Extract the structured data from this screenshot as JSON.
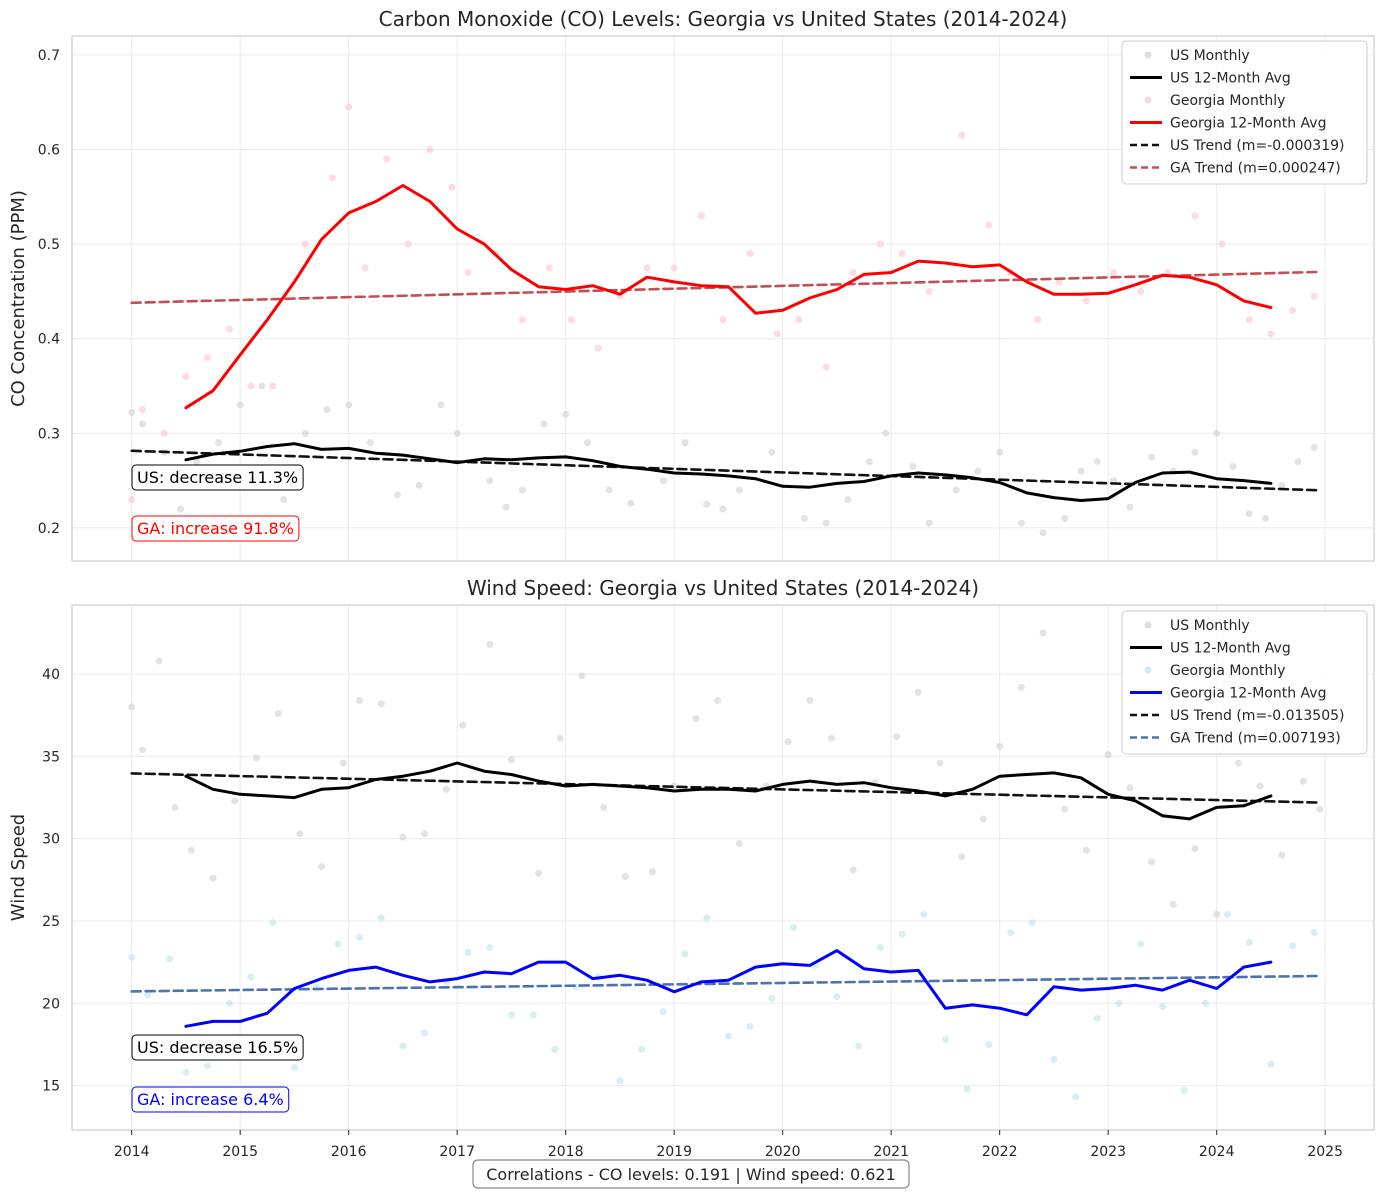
{
  "footer": "Correlations - CO levels: 0.191 | Wind speed: 0.621",
  "chart_data": [
    {
      "type": "line",
      "title": "Carbon Monoxide (CO) Levels: Georgia vs United States (2014-2024)",
      "ylabel": "CO Concentration (PPM)",
      "xlabel": "",
      "xlim": [
        2013.45,
        2025.45
      ],
      "ylim": [
        0.165,
        0.72
      ],
      "xticks": [
        2014,
        2015,
        2016,
        2017,
        2018,
        2019,
        2020,
        2021,
        2022,
        2023,
        2024,
        2025
      ],
      "yticks": [
        0.2,
        0.3,
        0.4,
        0.5,
        0.6,
        0.7
      ],
      "grid": true,
      "legend_position": "top-right",
      "legend": [
        "US Monthly",
        "US 12-Month Avg",
        "Georgia Monthly",
        "Georgia 12-Month Avg",
        "US Trend (m=-0.000319)",
        "GA Trend (m=0.000247)"
      ],
      "colors": {
        "us": "#000000",
        "ga": "#ff0000",
        "us_scatter": "#c8c8c8",
        "ga_scatter": "#ffb6c1",
        "us_trend": "#111111",
        "ga_trend": "#c44e52"
      },
      "series": [
        {
          "name": "US 12-Month Avg",
          "kind": "line",
          "x": [
            2014.5,
            2014.75,
            2015.0,
            2015.25,
            2015.5,
            2015.75,
            2016.0,
            2016.25,
            2016.5,
            2016.75,
            2017.0,
            2017.25,
            2017.5,
            2017.75,
            2018.0,
            2018.25,
            2018.5,
            2018.75,
            2019.0,
            2019.25,
            2019.5,
            2019.75,
            2020.0,
            2020.25,
            2020.5,
            2020.75,
            2021.0,
            2021.25,
            2021.5,
            2021.75,
            2022.0,
            2022.25,
            2022.5,
            2022.75,
            2023.0,
            2023.25,
            2023.5,
            2023.75,
            2024.0,
            2024.25,
            2024.5
          ],
          "y": [
            0.272,
            0.278,
            0.281,
            0.286,
            0.289,
            0.283,
            0.284,
            0.279,
            0.277,
            0.273,
            0.269,
            0.273,
            0.272,
            0.274,
            0.275,
            0.271,
            0.265,
            0.262,
            0.258,
            0.257,
            0.255,
            0.252,
            0.244,
            0.243,
            0.247,
            0.249,
            0.255,
            0.258,
            0.256,
            0.253,
            0.248,
            0.237,
            0.232,
            0.229,
            0.231,
            0.248,
            0.258,
            0.259,
            0.252,
            0.25,
            0.247
          ]
        },
        {
          "name": "Georgia 12-Month Avg",
          "kind": "line",
          "x": [
            2014.5,
            2014.75,
            2015.0,
            2015.25,
            2015.5,
            2015.75,
            2016.0,
            2016.25,
            2016.5,
            2016.75,
            2017.0,
            2017.25,
            2017.5,
            2017.75,
            2018.0,
            2018.25,
            2018.5,
            2018.75,
            2019.0,
            2019.25,
            2019.5,
            2019.75,
            2020.0,
            2020.25,
            2020.5,
            2020.75,
            2021.0,
            2021.25,
            2021.5,
            2021.75,
            2022.0,
            2022.25,
            2022.5,
            2022.75,
            2023.0,
            2023.25,
            2023.5,
            2023.75,
            2024.0,
            2024.25,
            2024.5
          ],
          "y": [
            0.327,
            0.345,
            0.383,
            0.42,
            0.46,
            0.505,
            0.533,
            0.545,
            0.562,
            0.545,
            0.516,
            0.5,
            0.473,
            0.455,
            0.452,
            0.456,
            0.447,
            0.465,
            0.46,
            0.456,
            0.455,
            0.427,
            0.43,
            0.443,
            0.452,
            0.468,
            0.47,
            0.482,
            0.48,
            0.476,
            0.478,
            0.46,
            0.447,
            0.447,
            0.448,
            0.457,
            0.467,
            0.465,
            0.457,
            0.44,
            0.433
          ]
        },
        {
          "name": "US Trend (m=-0.000319)",
          "kind": "trend",
          "x": [
            2014.0,
            2024.92
          ],
          "y": [
            0.2815,
            0.2398
          ]
        },
        {
          "name": "GA Trend (m=0.000247)",
          "kind": "trend",
          "x": [
            2014.0,
            2024.92
          ],
          "y": [
            0.438,
            0.4705
          ]
        },
        {
          "name": "US Monthly",
          "kind": "scatter",
          "x": [
            2014.0,
            2014.1,
            2014.3,
            2014.45,
            2014.6,
            2014.8,
            2015.0,
            2015.2,
            2015.4,
            2015.6,
            2015.8,
            2016.0,
            2016.2,
            2016.45,
            2016.65,
            2016.85,
            2017.0,
            2017.3,
            2017.45,
            2017.6,
            2017.8,
            2018.0,
            2018.2,
            2018.4,
            2018.6,
            2018.9,
            2019.1,
            2019.3,
            2019.45,
            2019.6,
            2019.9,
            2020.2,
            2020.4,
            2020.6,
            2020.8,
            2020.95,
            2021.2,
            2021.35,
            2021.6,
            2021.8,
            2022.0,
            2022.2,
            2022.4,
            2022.6,
            2022.75,
            2022.9,
            2023.05,
            2023.2,
            2023.4,
            2023.6,
            2023.8,
            2024.0,
            2024.15,
            2024.3,
            2024.45,
            2024.6,
            2024.75,
            2024.9
          ],
          "y": [
            0.322,
            0.31,
            0.28,
            0.22,
            0.27,
            0.29,
            0.33,
            0.35,
            0.23,
            0.3,
            0.325,
            0.33,
            0.29,
            0.235,
            0.245,
            0.33,
            0.3,
            0.25,
            0.222,
            0.24,
            0.31,
            0.32,
            0.29,
            0.24,
            0.226,
            0.25,
            0.29,
            0.225,
            0.22,
            0.24,
            0.28,
            0.21,
            0.205,
            0.23,
            0.27,
            0.3,
            0.265,
            0.205,
            0.24,
            0.26,
            0.28,
            0.205,
            0.195,
            0.21,
            0.26,
            0.27,
            0.25,
            0.222,
            0.275,
            0.26,
            0.28,
            0.3,
            0.265,
            0.215,
            0.21,
            0.245,
            0.27,
            0.285
          ]
        },
        {
          "name": "Georgia Monthly",
          "kind": "scatter",
          "x": [
            2014.0,
            2014.1,
            2014.3,
            2014.5,
            2014.7,
            2014.9,
            2015.1,
            2015.3,
            2015.6,
            2015.85,
            2016.0,
            2016.15,
            2016.35,
            2016.55,
            2016.75,
            2016.95,
            2017.1,
            2017.35,
            2017.6,
            2017.85,
            2018.05,
            2018.3,
            2018.5,
            2018.75,
            2019.0,
            2019.25,
            2019.45,
            2019.7,
            2019.95,
            2020.15,
            2020.4,
            2020.65,
            2020.9,
            2021.1,
            2021.35,
            2021.65,
            2021.9,
            2022.1,
            2022.35,
            2022.55,
            2022.8,
            2023.05,
            2023.3,
            2023.55,
            2023.8,
            2024.05,
            2024.3,
            2024.5,
            2024.7,
            2024.9
          ],
          "y": [
            0.23,
            0.325,
            0.3,
            0.36,
            0.38,
            0.41,
            0.35,
            0.35,
            0.5,
            0.57,
            0.645,
            0.475,
            0.59,
            0.5,
            0.6,
            0.56,
            0.47,
            0.49,
            0.42,
            0.475,
            0.42,
            0.39,
            0.445,
            0.475,
            0.475,
            0.53,
            0.42,
            0.49,
            0.405,
            0.42,
            0.37,
            0.47,
            0.5,
            0.49,
            0.45,
            0.615,
            0.52,
            0.47,
            0.42,
            0.46,
            0.44,
            0.47,
            0.45,
            0.47,
            0.53,
            0.5,
            0.42,
            0.405,
            0.43,
            0.445
          ]
        }
      ],
      "annotations": [
        {
          "text": "US: decrease 11.3%",
          "color": "#000000"
        },
        {
          "text": "GA: increase 91.8%",
          "color": "#ff0000"
        }
      ]
    },
    {
      "type": "line",
      "title": "Wind Speed: Georgia vs United States (2014-2024)",
      "ylabel": "Wind Speed",
      "xlabel": "",
      "xlim": [
        2013.45,
        2025.45
      ],
      "ylim": [
        12.3,
        44.2
      ],
      "xticks": [
        2014,
        2015,
        2016,
        2017,
        2018,
        2019,
        2020,
        2021,
        2022,
        2023,
        2024,
        2025
      ],
      "yticks": [
        15,
        20,
        25,
        30,
        35,
        40
      ],
      "grid": true,
      "legend_position": "top-right",
      "legend": [
        "US Monthly",
        "US 12-Month Avg",
        "Georgia Monthly",
        "Georgia 12-Month Avg",
        "US Trend (m=-0.013505)",
        "GA Trend (m=0.007193)"
      ],
      "colors": {
        "us": "#000000",
        "ga": "#0000ff",
        "us_scatter": "#c8c8c8",
        "ga_scatter": "#b0e0e6",
        "us_trend": "#111111",
        "ga_trend": "#4c72b0"
      },
      "series": [
        {
          "name": "US 12-Month Avg",
          "kind": "line",
          "x": [
            2014.5,
            2014.75,
            2015.0,
            2015.25,
            2015.5,
            2015.75,
            2016.0,
            2016.25,
            2016.5,
            2016.75,
            2017.0,
            2017.25,
            2017.5,
            2017.75,
            2018.0,
            2018.25,
            2018.5,
            2018.75,
            2019.0,
            2019.25,
            2019.5,
            2019.75,
            2020.0,
            2020.25,
            2020.5,
            2020.75,
            2021.0,
            2021.25,
            2021.5,
            2021.75,
            2022.0,
            2022.25,
            2022.5,
            2022.75,
            2023.0,
            2023.25,
            2023.5,
            2023.75,
            2024.0,
            2024.25,
            2024.5
          ],
          "y": [
            33.8,
            33.0,
            32.7,
            32.6,
            32.5,
            33.0,
            33.1,
            33.6,
            33.8,
            34.1,
            34.6,
            34.1,
            33.9,
            33.5,
            33.2,
            33.3,
            33.2,
            33.1,
            32.9,
            33.0,
            33.0,
            32.9,
            33.3,
            33.5,
            33.3,
            33.4,
            33.1,
            32.9,
            32.6,
            33.0,
            33.8,
            33.9,
            34.0,
            33.7,
            32.7,
            32.3,
            31.4,
            31.2,
            31.9,
            32.0,
            32.6
          ]
        },
        {
          "name": "Georgia 12-Month Avg",
          "kind": "line",
          "x": [
            2014.5,
            2014.75,
            2015.0,
            2015.25,
            2015.5,
            2015.75,
            2016.0,
            2016.25,
            2016.5,
            2016.75,
            2017.0,
            2017.25,
            2017.5,
            2017.75,
            2018.0,
            2018.25,
            2018.5,
            2018.75,
            2019.0,
            2019.25,
            2019.5,
            2019.75,
            2020.0,
            2020.25,
            2020.5,
            2020.75,
            2021.0,
            2021.25,
            2021.5,
            2021.75,
            2022.0,
            2022.25,
            2022.5,
            2022.75,
            2023.0,
            2023.25,
            2023.5,
            2023.75,
            2024.0,
            2024.25,
            2024.5
          ],
          "y": [
            18.6,
            18.9,
            18.9,
            19.4,
            20.9,
            21.5,
            22.0,
            22.2,
            21.7,
            21.3,
            21.5,
            21.9,
            21.8,
            22.5,
            22.5,
            21.5,
            21.7,
            21.4,
            20.7,
            21.3,
            21.4,
            22.2,
            22.4,
            22.3,
            23.2,
            22.1,
            21.9,
            22.0,
            19.7,
            19.9,
            19.7,
            19.3,
            21.0,
            20.8,
            20.9,
            21.1,
            20.8,
            21.4,
            20.9,
            22.2,
            22.5
          ]
        },
        {
          "name": "US Trend (m=-0.013505)",
          "kind": "trend",
          "x": [
            2014.0,
            2024.92
          ],
          "y": [
            33.97,
            32.2
          ]
        },
        {
          "name": "GA Trend (m=0.007193)",
          "kind": "trend",
          "x": [
            2014.0,
            2024.92
          ],
          "y": [
            20.72,
            21.66
          ]
        },
        {
          "name": "US Monthly",
          "kind": "scatter",
          "x": [
            2014.0,
            2014.1,
            2014.25,
            2014.4,
            2014.55,
            2014.75,
            2014.95,
            2015.15,
            2015.35,
            2015.55,
            2015.75,
            2015.95,
            2016.1,
            2016.3,
            2016.5,
            2016.7,
            2016.9,
            2017.05,
            2017.3,
            2017.5,
            2017.75,
            2017.95,
            2018.15,
            2018.35,
            2018.55,
            2018.8,
            2019.0,
            2019.2,
            2019.4,
            2019.6,
            2019.85,
            2020.05,
            2020.25,
            2020.45,
            2020.65,
            2020.85,
            2021.05,
            2021.25,
            2021.45,
            2021.65,
            2021.85,
            2022.0,
            2022.2,
            2022.4,
            2022.6,
            2022.8,
            2023.0,
            2023.2,
            2023.4,
            2023.6,
            2023.8,
            2024.0,
            2024.2,
            2024.4,
            2024.6,
            2024.8,
            2024.95
          ],
          "y": [
            38.0,
            35.4,
            40.8,
            31.9,
            29.3,
            27.6,
            32.3,
            34.9,
            37.6,
            30.3,
            28.3,
            34.6,
            38.4,
            38.2,
            30.1,
            30.3,
            33.0,
            36.9,
            41.8,
            34.8,
            27.9,
            36.1,
            39.9,
            31.9,
            27.7,
            28.0,
            33.2,
            37.3,
            38.4,
            29.7,
            33.2,
            35.9,
            38.4,
            36.1,
            28.1,
            33.4,
            36.2,
            38.9,
            34.6,
            28.9,
            31.2,
            35.6,
            39.2,
            42.5,
            31.8,
            29.3,
            35.1,
            33.1,
            28.6,
            26.0,
            29.4,
            25.4,
            34.6,
            33.2,
            29.0,
            33.5,
            31.8
          ]
        },
        {
          "name": "Georgia Monthly",
          "kind": "scatter",
          "x": [
            2014.0,
            2014.15,
            2014.35,
            2014.5,
            2014.7,
            2014.9,
            2015.1,
            2015.3,
            2015.5,
            2015.7,
            2015.9,
            2016.1,
            2016.3,
            2016.5,
            2016.7,
            2016.9,
            2017.1,
            2017.3,
            2017.5,
            2017.7,
            2017.9,
            2018.1,
            2018.3,
            2018.5,
            2018.7,
            2018.9,
            2019.1,
            2019.3,
            2019.5,
            2019.7,
            2019.9,
            2020.1,
            2020.3,
            2020.5,
            2020.7,
            2020.9,
            2021.1,
            2021.3,
            2021.5,
            2021.7,
            2021.9,
            2022.1,
            2022.3,
            2022.5,
            2022.7,
            2022.9,
            2023.1,
            2023.3,
            2023.5,
            2023.7,
            2023.9,
            2024.1,
            2024.3,
            2024.5,
            2024.7,
            2024.9
          ],
          "y": [
            22.8,
            20.5,
            22.7,
            15.8,
            16.2,
            20.0,
            21.6,
            24.9,
            16.1,
            21.0,
            23.6,
            24.0,
            25.2,
            17.4,
            18.2,
            21.3,
            23.1,
            23.4,
            19.3,
            19.3,
            17.2,
            21.0,
            21.6,
            15.3,
            17.2,
            19.5,
            23.0,
            25.2,
            18.0,
            18.6,
            20.3,
            24.6,
            22.3,
            20.4,
            17.4,
            23.4,
            24.2,
            25.4,
            17.8,
            14.8,
            17.5,
            24.3,
            24.9,
            16.6,
            14.3,
            19.1,
            20.0,
            23.6,
            19.8,
            14.7,
            20.0,
            25.4,
            23.7,
            16.3,
            23.5,
            24.3
          ]
        }
      ],
      "annotations": [
        {
          "text": "US: decrease 16.5%",
          "color": "#000000"
        },
        {
          "text": "GA: increase 6.4%",
          "color": "#0000ff"
        }
      ]
    }
  ]
}
